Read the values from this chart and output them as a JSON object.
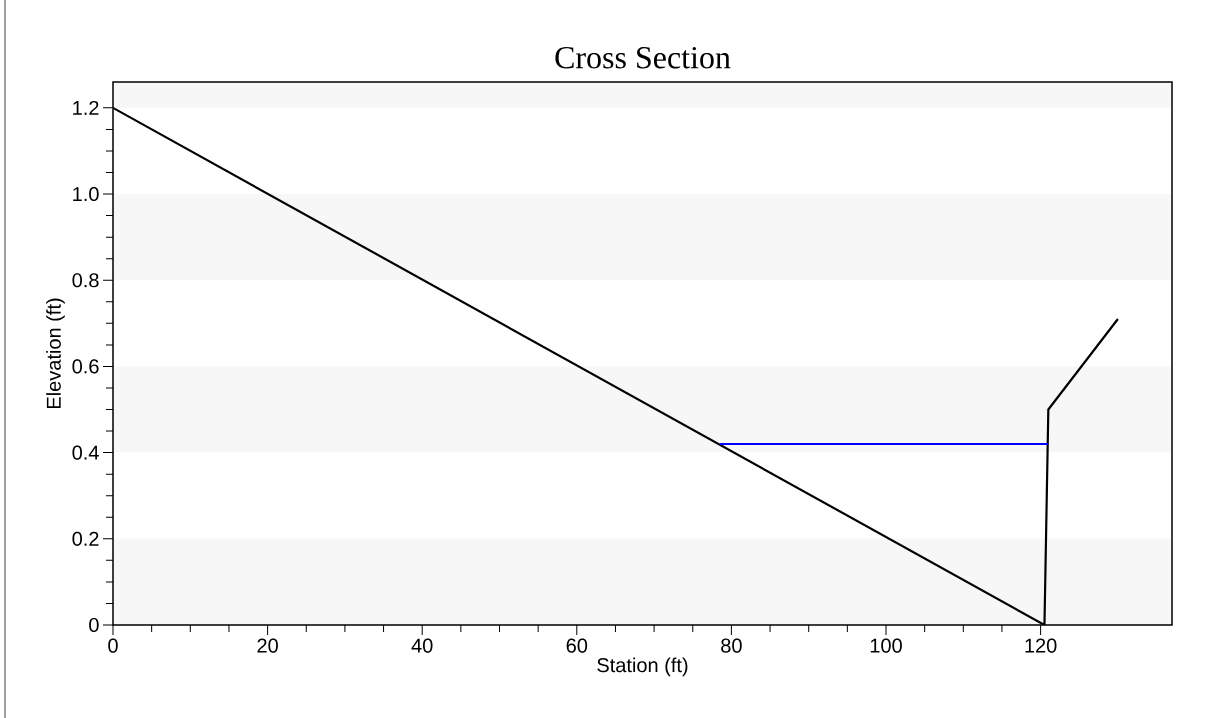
{
  "chart_data": {
    "type": "line",
    "title": "Cross Section",
    "xlabel": "Station (ft)",
    "ylabel": "Elevation (ft)",
    "series": [
      {
        "x": [
          0,
          120.5,
          121,
          130
        ],
        "values": [
          1.2,
          0,
          0.5,
          0.71
        ],
        "color": "#000000"
      },
      {
        "x": [
          78.5,
          121
        ],
        "values": [
          0.42,
          0.42
        ],
        "color": "#0000ff"
      }
    ],
    "xlim": [
      0,
      137
    ],
    "ylim": [
      0,
      1.26
    ],
    "xticks": [
      0,
      20,
      40,
      60,
      80,
      100,
      120
    ],
    "yticks": [
      0,
      0.2,
      0.4,
      0.6,
      0.8,
      {
        "value": 1.0,
        "label": "1.0"
      },
      1.2
    ],
    "bands": [
      {
        "axis": "y",
        "from": 0,
        "to": 0.2,
        "color": "#f7f7f7"
      },
      {
        "axis": "y",
        "from": 0.4,
        "to": 0.6,
        "color": "#f7f7f7"
      },
      {
        "axis": "y",
        "from": 0.8,
        "to": 1.0,
        "color": "#f7f7f7"
      },
      {
        "axis": "y",
        "from": 1.2,
        "to": 1.26,
        "color": "#f7f7f7"
      }
    ],
    "grid": false,
    "marker": "none",
    "line_style": "solid"
  }
}
